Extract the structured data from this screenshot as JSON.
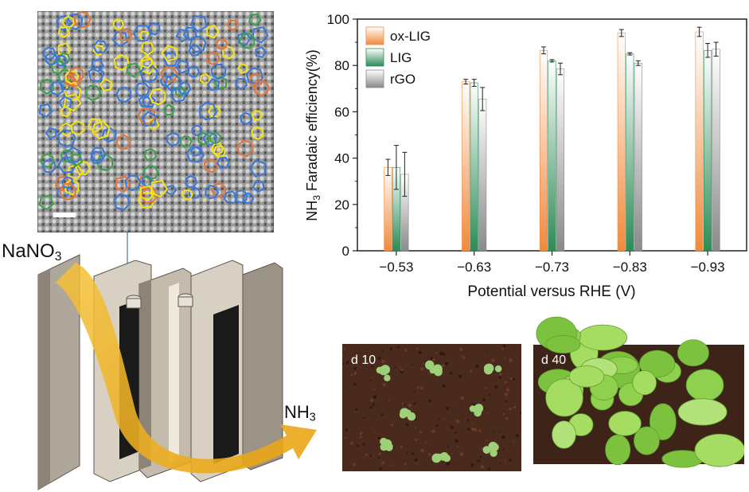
{
  "labels": {
    "reactant_main": "NaNO",
    "reactant_sub": "3",
    "product_main": "NH",
    "product_sub": "3",
    "photo_day_10": "d 10",
    "photo_day_40": "d 40"
  },
  "colors": {
    "ox_lig": "#f08a3c",
    "lig": "#2e8b57",
    "rgo": "#8a8a8a",
    "flow_arrow": "#f2b01e"
  },
  "chart_data": {
    "type": "bar",
    "xlabel": "Potential versus RHE (V)",
    "ylabel_prefix": "NH",
    "ylabel_sub": "3",
    "ylabel_suffix": " Faradaic efficiency(%)",
    "categories": [
      "−0.53",
      "−0.63",
      "−0.73",
      "−0.83",
      "−0.93"
    ],
    "ylim": [
      0,
      100
    ],
    "yticks": [
      0,
      20,
      40,
      60,
      80,
      100
    ],
    "legend_position": "top-left",
    "grid": false,
    "series": [
      {
        "name": "ox-LIG",
        "color": "#f08a3c",
        "values": [
          36,
          73,
          86.5,
          94,
          94.5
        ],
        "errors": [
          3.5,
          1,
          1.5,
          1.5,
          2
        ]
      },
      {
        "name": "LIG",
        "color": "#2e8b57",
        "values": [
          36,
          72.5,
          82,
          85,
          86.5
        ],
        "errors": [
          9.5,
          1.5,
          0.5,
          0.5,
          3
        ]
      },
      {
        "name": "rGO",
        "color": "#8a8a8a",
        "values": [
          33,
          65.5,
          78.5,
          81,
          87
        ],
        "errors": [
          9.5,
          5,
          2.5,
          1,
          3
        ]
      }
    ]
  }
}
